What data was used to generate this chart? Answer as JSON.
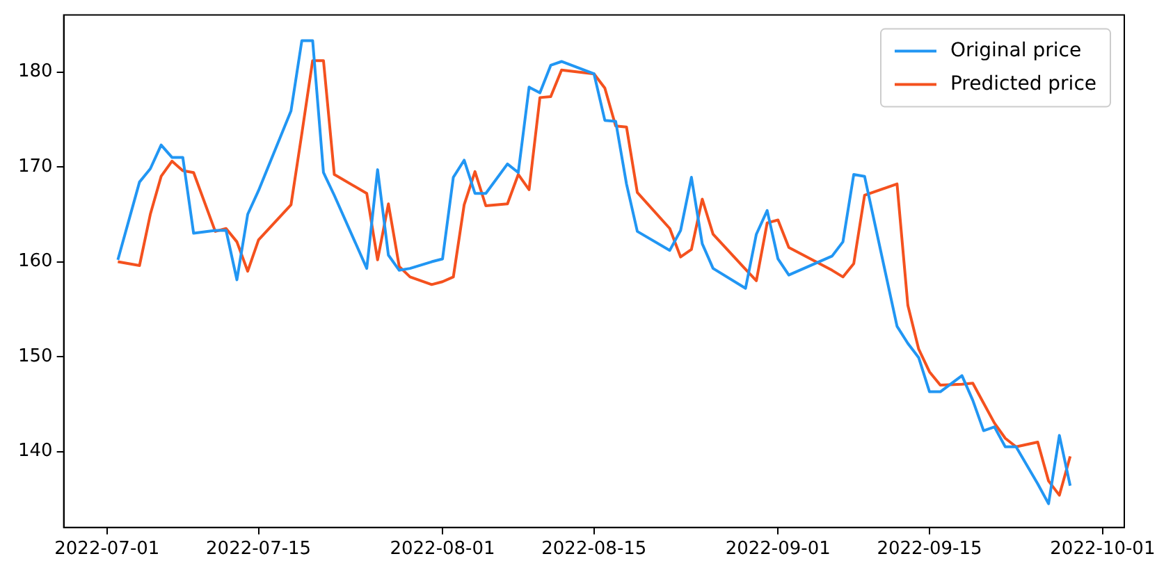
{
  "chart_data": {
    "type": "line",
    "x": [
      "2022-07-02",
      "2022-07-04",
      "2022-07-05",
      "2022-07-06",
      "2022-07-07",
      "2022-07-08",
      "2022-07-09",
      "2022-07-11",
      "2022-07-12",
      "2022-07-13",
      "2022-07-14",
      "2022-07-15",
      "2022-07-18",
      "2022-07-19",
      "2022-07-20",
      "2022-07-21",
      "2022-07-22",
      "2022-07-25",
      "2022-07-26",
      "2022-07-27",
      "2022-07-28",
      "2022-07-29",
      "2022-07-31",
      "2022-08-01",
      "2022-08-02",
      "2022-08-03",
      "2022-08-04",
      "2022-08-05",
      "2022-08-07",
      "2022-08-08",
      "2022-08-09",
      "2022-08-10",
      "2022-08-11",
      "2022-08-12",
      "2022-08-15",
      "2022-08-16",
      "2022-08-17",
      "2022-08-18",
      "2022-08-19",
      "2022-08-22",
      "2022-08-23",
      "2022-08-24",
      "2022-08-25",
      "2022-08-26",
      "2022-08-29",
      "2022-08-30",
      "2022-08-31",
      "2022-09-01",
      "2022-09-02",
      "2022-09-06",
      "2022-09-07",
      "2022-09-08",
      "2022-09-09",
      "2022-09-12",
      "2022-09-13",
      "2022-09-14",
      "2022-09-15",
      "2022-09-16",
      "2022-09-18",
      "2022-09-19",
      "2022-09-20",
      "2022-09-21",
      "2022-09-22",
      "2022-09-23",
      "2022-09-25",
      "2022-09-26",
      "2022-09-27",
      "2022-09-28"
    ],
    "series": [
      {
        "name": "Original price",
        "color": "#2196f3",
        "values": [
          160.2,
          168.4,
          169.8,
          172.3,
          171.0,
          171.0,
          163.0,
          163.3,
          163.3,
          158.1,
          165.0,
          167.5,
          175.9,
          183.3,
          183.3,
          169.4,
          167.0,
          159.3,
          169.7,
          160.7,
          159.1,
          159.3,
          160.0,
          160.3,
          168.9,
          170.7,
          167.2,
          167.2,
          170.3,
          169.4,
          178.4,
          177.8,
          180.7,
          181.1,
          179.8,
          174.9,
          174.8,
          168.2,
          163.2,
          161.2,
          163.3,
          168.9,
          161.9,
          159.3,
          157.2,
          162.9,
          165.4,
          160.3,
          158.6,
          160.6,
          162.1,
          169.2,
          169.0,
          153.2,
          151.4,
          149.9,
          146.3,
          146.3,
          148.0,
          145.4,
          142.2,
          142.6,
          140.5,
          140.5,
          136.6,
          134.5,
          141.7,
          136.4
        ]
      },
      {
        "name": "Predicted price",
        "color": "#f4511e",
        "values": [
          160.0,
          159.6,
          165.0,
          169.0,
          170.6,
          169.6,
          169.4,
          163.2,
          163.5,
          162.1,
          159.0,
          162.3,
          166.0,
          173.5,
          181.2,
          181.2,
          169.2,
          167.2,
          160.2,
          166.1,
          159.5,
          158.4,
          157.6,
          157.9,
          158.4,
          166.0,
          169.5,
          165.9,
          166.1,
          169.2,
          167.6,
          177.3,
          177.4,
          180.2,
          179.8,
          178.3,
          174.3,
          174.2,
          167.3,
          163.5,
          160.5,
          161.3,
          166.6,
          162.9,
          159.2,
          158.0,
          164.1,
          164.4,
          161.5,
          159.1,
          158.4,
          159.8,
          167.0,
          168.2,
          155.4,
          150.8,
          148.4,
          147.0,
          147.1,
          147.2,
          145.1,
          143.0,
          141.4,
          140.5,
          141.0,
          136.9,
          135.4,
          139.5
        ]
      }
    ],
    "xlim": [
      "2022-06-27",
      "2022-10-03"
    ],
    "xticks": [
      "2022-07-01",
      "2022-07-15",
      "2022-08-01",
      "2022-08-15",
      "2022-09-01",
      "2022-09-15",
      "2022-10-01"
    ],
    "ylim": [
      132,
      186
    ],
    "yticks": [
      140,
      150,
      160,
      170,
      180
    ],
    "legend": "top right",
    "grid": false,
    "marker": "none",
    "line_style": "solid"
  }
}
